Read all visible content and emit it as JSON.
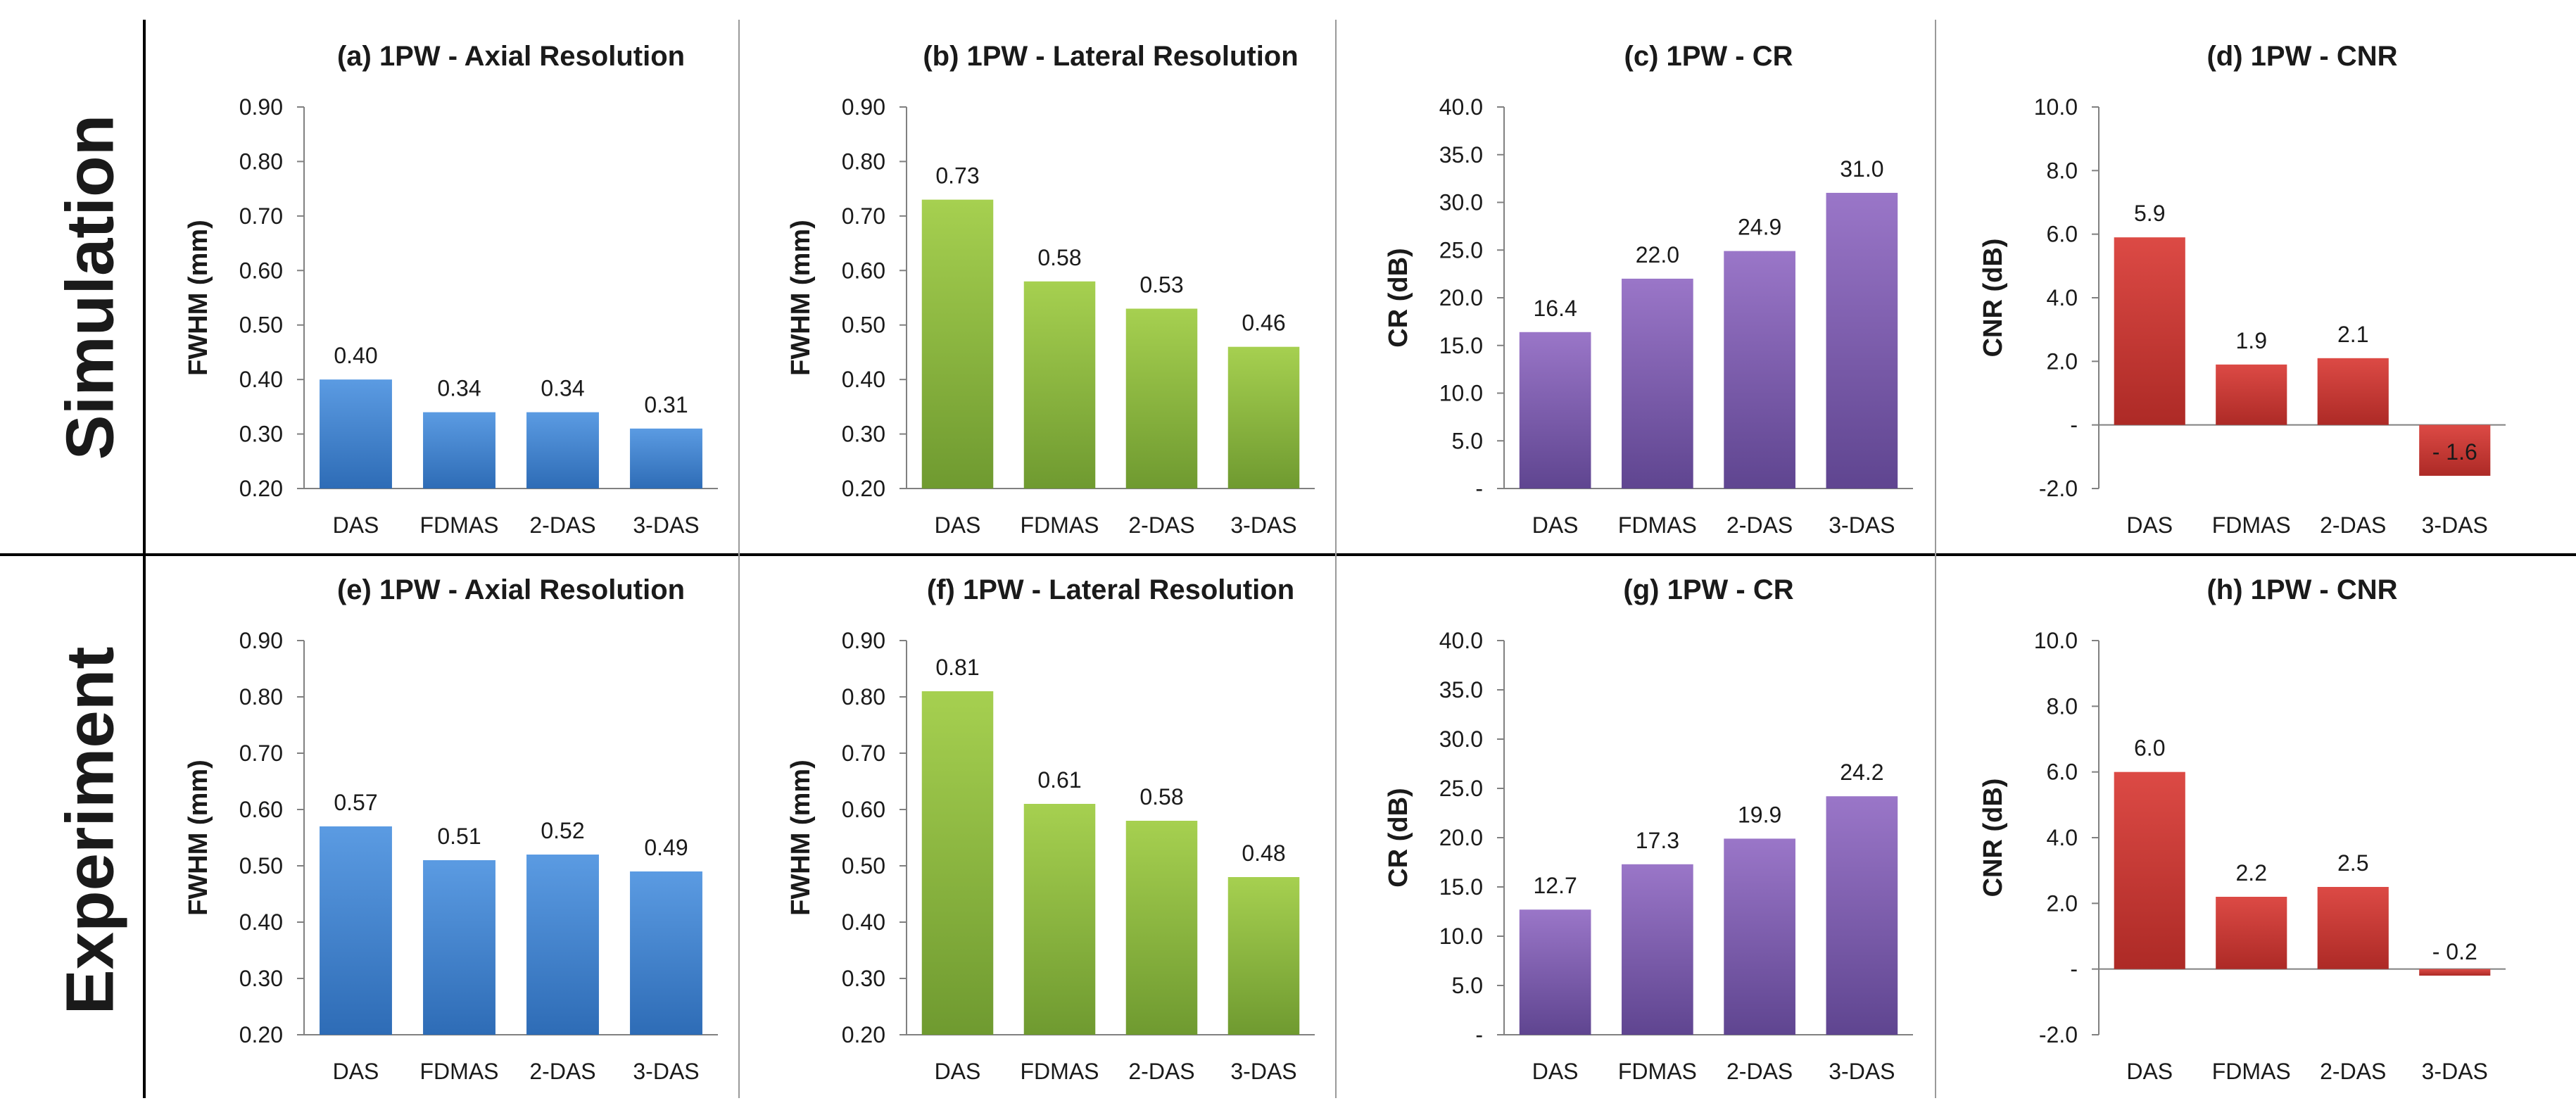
{
  "row_labels": [
    "Simulation",
    "Experiment"
  ],
  "colors": {
    "blue": [
      "#5b9be2",
      "#2e6cb6"
    ],
    "green": [
      "#a6d050",
      "#6f9a30"
    ],
    "purple": [
      "#9a76c8",
      "#5f4590"
    ],
    "red": [
      "#dc4a45",
      "#ad2a26"
    ],
    "divider": "#000000",
    "axis": "#808080"
  },
  "chart_data": [
    {
      "type": "bar",
      "title": "(a) 1PW -  Axial Resolution",
      "ylabel": "FWHM (mm)",
      "categories": [
        "DAS",
        "FDMAS",
        "2-DAS",
        "3-DAS"
      ],
      "values": [
        0.4,
        0.34,
        0.34,
        0.31
      ],
      "data_labels": [
        "0.40",
        "0.34",
        "0.34",
        "0.31"
      ],
      "ylim": [
        0.2,
        0.9
      ],
      "yticks": [
        "0.20",
        "0.30",
        "0.40",
        "0.50",
        "0.60",
        "0.70",
        "0.80",
        "0.90"
      ],
      "color": "blue"
    },
    {
      "type": "bar",
      "title": "(b) 1PW -  Lateral Resolution",
      "ylabel": "FWHM (mm)",
      "categories": [
        "DAS",
        "FDMAS",
        "2-DAS",
        "3-DAS"
      ],
      "values": [
        0.73,
        0.58,
        0.53,
        0.46
      ],
      "data_labels": [
        "0.73",
        "0.58",
        "0.53",
        "0.46"
      ],
      "ylim": [
        0.2,
        0.9
      ],
      "yticks": [
        "0.20",
        "0.30",
        "0.40",
        "0.50",
        "0.60",
        "0.70",
        "0.80",
        "0.90"
      ],
      "color": "green"
    },
    {
      "type": "bar",
      "title": "(c)  1PW -  CR",
      "ylabel": "CR (dB)",
      "categories": [
        "DAS",
        "FDMAS",
        "2-DAS",
        "3-DAS"
      ],
      "values": [
        16.4,
        22.0,
        24.9,
        31.0
      ],
      "data_labels": [
        "16.4",
        "22.0",
        "24.9",
        "31.0"
      ],
      "ylim": [
        0,
        40
      ],
      "yticks": [
        "-",
        "5.0",
        "10.0",
        "15.0",
        "20.0",
        "25.0",
        "30.0",
        "35.0",
        "40.0"
      ],
      "color": "purple"
    },
    {
      "type": "bar",
      "title": "(d) 1PW -  CNR",
      "ylabel": "CNR (dB)",
      "categories": [
        "DAS",
        "FDMAS",
        "2-DAS",
        "3-DAS"
      ],
      "values": [
        5.9,
        1.9,
        2.1,
        -1.6
      ],
      "data_labels": [
        "5.9",
        "1.9",
        "2.1",
        "- 1.6"
      ],
      "ylim": [
        -2,
        10
      ],
      "yticks": [
        "-2.0",
        "-",
        "2.0",
        "4.0",
        "6.0",
        "8.0",
        "10.0"
      ],
      "color": "red"
    },
    {
      "type": "bar",
      "title": "(e)  1PW -  Axial Resolution",
      "ylabel": "FWHM (mm)",
      "categories": [
        "DAS",
        "FDMAS",
        "2-DAS",
        "3-DAS"
      ],
      "values": [
        0.57,
        0.51,
        0.52,
        0.49
      ],
      "data_labels": [
        "0.57",
        "0.51",
        "0.52",
        "0.49"
      ],
      "ylim": [
        0.2,
        0.9
      ],
      "yticks": [
        "0.20",
        "0.30",
        "0.40",
        "0.50",
        "0.60",
        "0.70",
        "0.80",
        "0.90"
      ],
      "color": "blue"
    },
    {
      "type": "bar",
      "title": "(f)  1PW -  Lateral Resolution",
      "ylabel": "FWHM (mm)",
      "categories": [
        "DAS",
        "FDMAS",
        "2-DAS",
        "3-DAS"
      ],
      "values": [
        0.81,
        0.61,
        0.58,
        0.48
      ],
      "data_labels": [
        "0.81",
        "0.61",
        "0.58",
        "0.48"
      ],
      "ylim": [
        0.2,
        0.9
      ],
      "yticks": [
        "0.20",
        "0.30",
        "0.40",
        "0.50",
        "0.60",
        "0.70",
        "0.80",
        "0.90"
      ],
      "color": "green"
    },
    {
      "type": "bar",
      "title": "(g)  1PW -  CR",
      "ylabel": "CR (dB)",
      "categories": [
        "DAS",
        "FDMAS",
        "2-DAS",
        "3-DAS"
      ],
      "values": [
        12.7,
        17.3,
        19.9,
        24.2
      ],
      "data_labels": [
        "12.7",
        "17.3",
        "19.9",
        "24.2"
      ],
      "ylim": [
        0,
        40
      ],
      "yticks": [
        "-",
        "5.0",
        "10.0",
        "15.0",
        "20.0",
        "25.0",
        "30.0",
        "35.0",
        "40.0"
      ],
      "color": "purple"
    },
    {
      "type": "bar",
      "title": "(h)  1PW -  CNR",
      "ylabel": "CNR (dB)",
      "categories": [
        "DAS",
        "FDMAS",
        "2-DAS",
        "3-DAS"
      ],
      "values": [
        6.0,
        2.2,
        2.5,
        -0.2
      ],
      "data_labels": [
        "6.0",
        "2.2",
        "2.5",
        "- 0.2"
      ],
      "ylim": [
        -2,
        10
      ],
      "yticks": [
        "-2.0",
        "-",
        "2.0",
        "4.0",
        "6.0",
        "8.0",
        "10.0"
      ],
      "color": "red"
    }
  ]
}
